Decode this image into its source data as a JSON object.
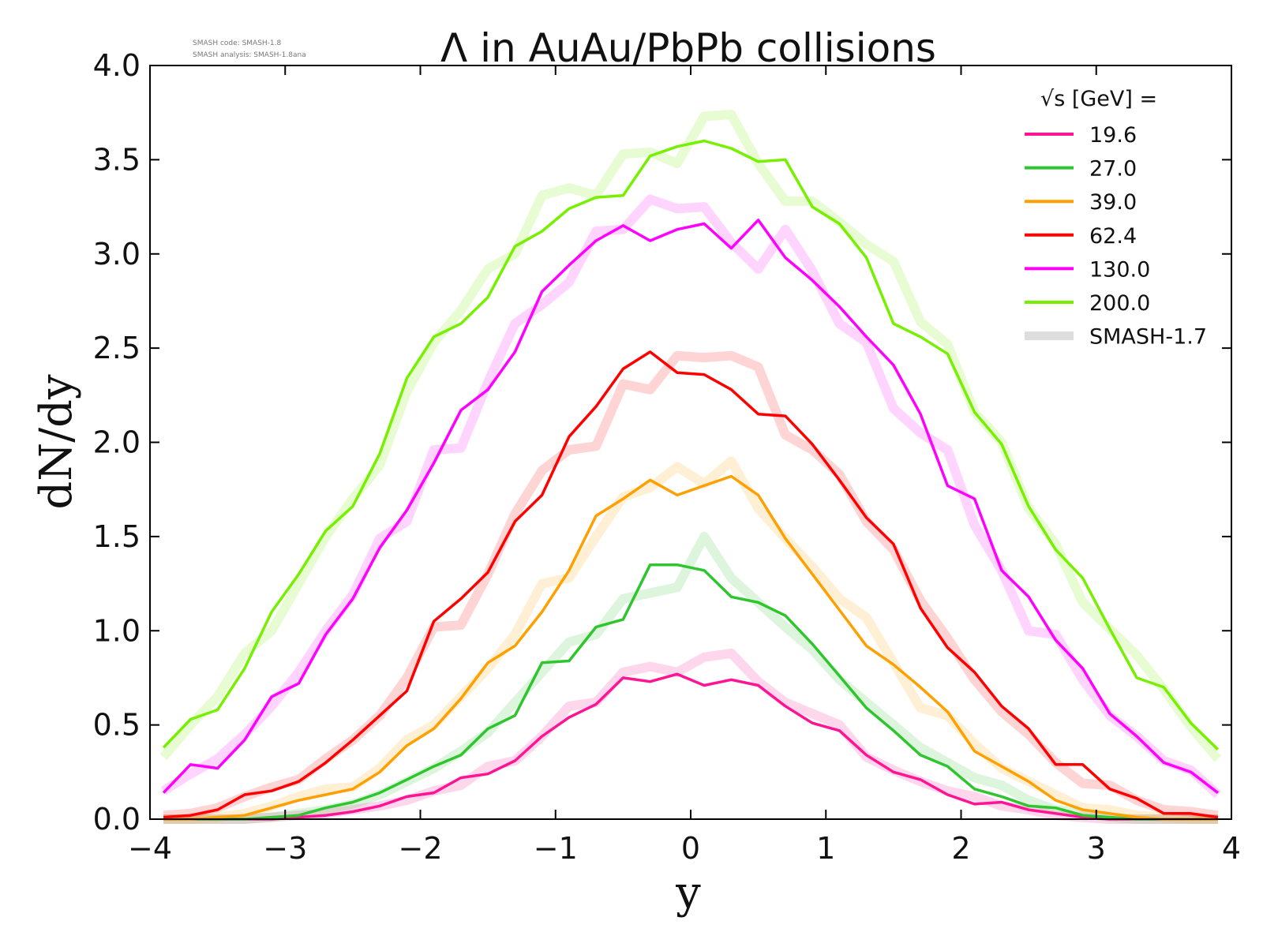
{
  "chart_data": {
    "type": "line",
    "title": "Λ in AuAu/PbPb collisions",
    "xlabel": "y",
    "ylabel": "dN/dy",
    "xlim": [
      -4,
      4
    ],
    "ylim": [
      0,
      4
    ],
    "xticks": [
      "−4",
      "−3",
      "−2",
      "−1",
      "0",
      "1",
      "2",
      "3",
      "4"
    ],
    "yticks": [
      "0.0",
      "0.5",
      "1.0",
      "1.5",
      "2.0",
      "2.5",
      "3.0",
      "3.5",
      "4.0"
    ],
    "grid": false,
    "legend": {
      "position": "top-right",
      "title": "√s [GeV] =",
      "reference_label": "SMASH-1.7"
    },
    "notes": [
      "SMASH code:      SMASH-1.8",
      "SMASH analysis: SMASH-1.8ana"
    ],
    "x": [
      -3.9,
      -3.7,
      -3.5,
      -3.3,
      -3.1,
      -2.9,
      -2.7,
      -2.5,
      -2.3,
      -2.1,
      -1.9,
      -1.7,
      -1.5,
      -1.3,
      -1.1,
      -0.9,
      -0.7,
      -0.5,
      -0.3,
      -0.1,
      0.1,
      0.3,
      0.5,
      0.7,
      0.9,
      1.1,
      1.3,
      1.5,
      1.7,
      1.9,
      2.1,
      2.3,
      2.5,
      2.7,
      2.9,
      3.1,
      3.3,
      3.5,
      3.7,
      3.9
    ],
    "series": [
      {
        "name": "19.6",
        "color": "#ff1493",
        "values": [
          0.0,
          0.0,
          0.0,
          0.0,
          0.0,
          0.01,
          0.02,
          0.04,
          0.07,
          0.12,
          0.14,
          0.22,
          0.24,
          0.31,
          0.44,
          0.54,
          0.61,
          0.75,
          0.73,
          0.77,
          0.71,
          0.74,
          0.71,
          0.6,
          0.51,
          0.47,
          0.34,
          0.25,
          0.21,
          0.13,
          0.08,
          0.09,
          0.05,
          0.03,
          0.01,
          0.0,
          0.0,
          0.0,
          0.0,
          0.0
        ],
        "reference": [
          0.0,
          0.0,
          0.0,
          0.0,
          0.01,
          0.02,
          0.03,
          0.05,
          0.07,
          0.1,
          0.15,
          0.18,
          0.28,
          0.31,
          0.44,
          0.6,
          0.62,
          0.78,
          0.81,
          0.78,
          0.86,
          0.88,
          0.73,
          0.62,
          0.56,
          0.5,
          0.33,
          0.26,
          0.2,
          0.15,
          0.12,
          0.07,
          0.05,
          0.02,
          0.01,
          0.0,
          0.0,
          0.0,
          0.0,
          0.0
        ]
      },
      {
        "name": "27.0",
        "color": "#2ec52e",
        "values": [
          0.0,
          0.0,
          0.0,
          0.0,
          0.01,
          0.02,
          0.06,
          0.09,
          0.14,
          0.21,
          0.28,
          0.34,
          0.48,
          0.55,
          0.83,
          0.84,
          1.02,
          1.06,
          1.35,
          1.35,
          1.32,
          1.18,
          1.15,
          1.08,
          0.93,
          0.76,
          0.59,
          0.47,
          0.34,
          0.28,
          0.16,
          0.12,
          0.07,
          0.06,
          0.02,
          0.01,
          0.0,
          0.0,
          0.0,
          0.0
        ],
        "reference": [
          0.0,
          0.0,
          0.0,
          0.0,
          0.01,
          0.03,
          0.05,
          0.08,
          0.13,
          0.2,
          0.27,
          0.36,
          0.46,
          0.62,
          0.78,
          0.94,
          0.98,
          1.17,
          1.2,
          1.23,
          1.5,
          1.28,
          1.15,
          1.02,
          0.9,
          0.74,
          0.62,
          0.5,
          0.38,
          0.3,
          0.22,
          0.18,
          0.1,
          0.05,
          0.03,
          0.01,
          0.0,
          0.0,
          0.0,
          0.0
        ]
      },
      {
        "name": "39.0",
        "color": "#ffa000",
        "values": [
          0.0,
          0.0,
          0.01,
          0.02,
          0.06,
          0.1,
          0.13,
          0.16,
          0.25,
          0.39,
          0.48,
          0.64,
          0.83,
          0.92,
          1.1,
          1.32,
          1.61,
          1.7,
          1.8,
          1.72,
          1.77,
          1.82,
          1.72,
          1.49,
          1.3,
          1.11,
          0.92,
          0.82,
          0.7,
          0.57,
          0.36,
          0.28,
          0.2,
          0.1,
          0.05,
          0.03,
          0.01,
          0.0,
          0.0,
          0.0
        ],
        "reference": [
          0.0,
          0.0,
          0.01,
          0.03,
          0.07,
          0.12,
          0.16,
          0.17,
          0.27,
          0.42,
          0.5,
          0.65,
          0.8,
          0.98,
          1.25,
          1.28,
          1.5,
          1.71,
          1.76,
          1.87,
          1.78,
          1.9,
          1.65,
          1.49,
          1.34,
          1.17,
          1.07,
          0.83,
          0.59,
          0.55,
          0.4,
          0.27,
          0.2,
          0.13,
          0.06,
          0.05,
          0.02,
          0.01,
          0.0,
          0.0
        ]
      },
      {
        "name": "62.4",
        "color": "#ff0000",
        "values": [
          0.01,
          0.02,
          0.05,
          0.13,
          0.15,
          0.2,
          0.3,
          0.42,
          0.55,
          0.68,
          1.05,
          1.17,
          1.31,
          1.58,
          1.72,
          2.03,
          2.19,
          2.39,
          2.48,
          2.37,
          2.36,
          2.28,
          2.15,
          2.14,
          1.99,
          1.8,
          1.6,
          1.46,
          1.12,
          0.91,
          0.78,
          0.6,
          0.48,
          0.29,
          0.29,
          0.16,
          0.11,
          0.03,
          0.03,
          0.01
        ],
        "reference": [
          0.02,
          0.03,
          0.06,
          0.12,
          0.17,
          0.21,
          0.32,
          0.42,
          0.55,
          0.75,
          1.02,
          1.03,
          1.3,
          1.62,
          1.85,
          1.96,
          1.98,
          2.31,
          2.28,
          2.46,
          2.45,
          2.46,
          2.4,
          2.04,
          1.96,
          1.83,
          1.58,
          1.43,
          1.16,
          0.96,
          0.74,
          0.57,
          0.45,
          0.3,
          0.19,
          0.18,
          0.1,
          0.05,
          0.04,
          0.02
        ]
      },
      {
        "name": "130.0",
        "color": "#ff00ff",
        "values": [
          0.14,
          0.29,
          0.27,
          0.42,
          0.65,
          0.72,
          0.98,
          1.17,
          1.44,
          1.64,
          1.89,
          2.17,
          2.28,
          2.48,
          2.8,
          2.94,
          3.07,
          3.15,
          3.07,
          3.13,
          3.16,
          3.03,
          3.18,
          2.98,
          2.86,
          2.72,
          2.56,
          2.41,
          2.15,
          1.77,
          1.7,
          1.32,
          1.18,
          0.95,
          0.8,
          0.56,
          0.44,
          0.3,
          0.25,
          0.14
        ],
        "reference": [
          0.15,
          0.24,
          0.32,
          0.45,
          0.6,
          0.78,
          1.0,
          1.19,
          1.49,
          1.58,
          1.96,
          1.97,
          2.32,
          2.63,
          2.73,
          2.85,
          3.12,
          3.13,
          3.29,
          3.24,
          3.25,
          3.06,
          2.92,
          3.13,
          2.91,
          2.63,
          2.53,
          2.18,
          2.05,
          1.96,
          1.56,
          1.32,
          1.0,
          0.98,
          0.74,
          0.55,
          0.44,
          0.31,
          0.26,
          0.13
        ]
      },
      {
        "name": "200.0",
        "color": "#77f000",
        "values": [
          0.38,
          0.53,
          0.58,
          0.8,
          1.1,
          1.3,
          1.53,
          1.66,
          1.94,
          2.34,
          2.56,
          2.63,
          2.77,
          3.04,
          3.12,
          3.24,
          3.3,
          3.31,
          3.52,
          3.57,
          3.6,
          3.56,
          3.49,
          3.5,
          3.25,
          3.16,
          2.98,
          2.63,
          2.56,
          2.47,
          2.16,
          1.99,
          1.66,
          1.43,
          1.28,
          1.01,
          0.75,
          0.7,
          0.51,
          0.37
        ],
        "reference": [
          0.33,
          0.5,
          0.65,
          0.88,
          1.0,
          1.25,
          1.5,
          1.7,
          1.88,
          2.27,
          2.53,
          2.7,
          2.92,
          3.0,
          3.31,
          3.35,
          3.31,
          3.53,
          3.54,
          3.48,
          3.73,
          3.74,
          3.48,
          3.28,
          3.28,
          3.17,
          3.05,
          2.96,
          2.64,
          2.52,
          2.16,
          2.0,
          1.65,
          1.46,
          1.15,
          1.01,
          0.87,
          0.69,
          0.49,
          0.32
        ]
      }
    ]
  }
}
